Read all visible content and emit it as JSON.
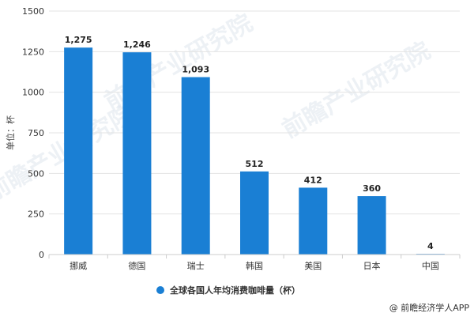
{
  "chart_data": {
    "type": "bar",
    "categories": [
      "挪威",
      "德国",
      "瑞士",
      "韩国",
      "美国",
      "日本",
      "中国"
    ],
    "series": [
      {
        "name": "全球各国人年均消费咖啡量（杯）",
        "values": [
          1275,
          1246,
          1093,
          512,
          412,
          360,
          4
        ],
        "labels": [
          "1,275",
          "1,246",
          "1,093",
          "512",
          "412",
          "360",
          "4"
        ]
      }
    ],
    "title": "",
    "xlabel": "",
    "ylabel": "单位：杯",
    "ylim": [
      0,
      1500
    ],
    "yticks": [
      0,
      250,
      500,
      750,
      1000,
      1250,
      1500
    ],
    "grid": true,
    "legend_position": "bottom",
    "bar_color": "#1a7fd4",
    "grid_color": "#e3e3e3"
  },
  "watermark": "前瞻产业研究院",
  "credit": "@ 前瞻经济学人APP"
}
